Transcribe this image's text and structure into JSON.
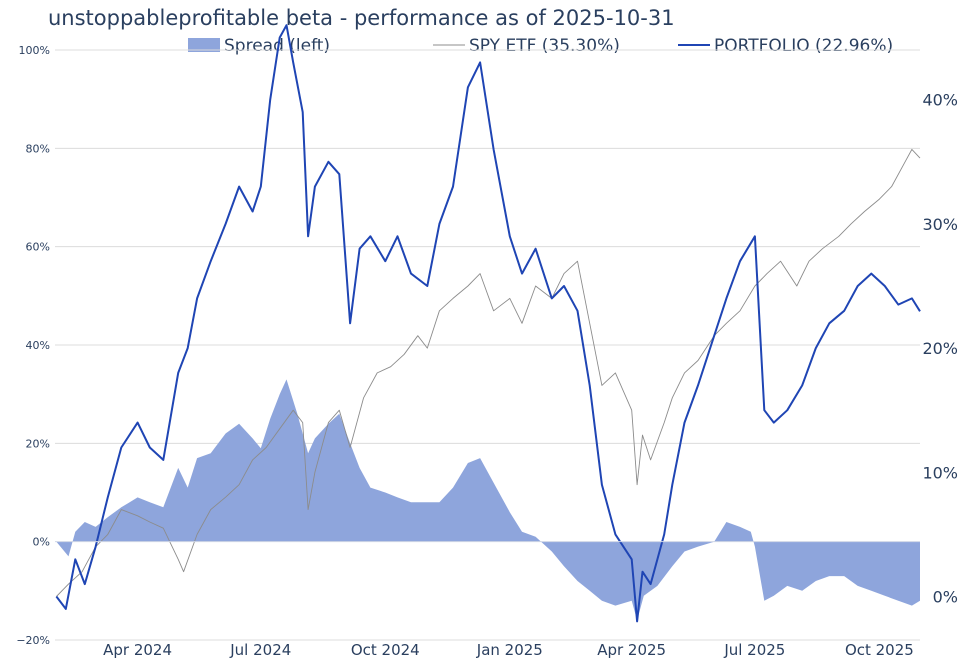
{
  "chart_data": {
    "type": "line",
    "title": "unstoppableprofitable beta - performance as of 2025-10-31",
    "legend_position": "top",
    "grid": true,
    "x_range": [
      "2024-01-31",
      "2025-10-31"
    ],
    "x_ticks": [
      {
        "date": "2024-04-01",
        "label": "Apr 2024"
      },
      {
        "date": "2024-07-01",
        "label": "Jul 2024"
      },
      {
        "date": "2024-10-01",
        "label": "Oct 2024"
      },
      {
        "date": "2025-01-01",
        "label": "Jan 2025"
      },
      {
        "date": "2025-04-01",
        "label": "Apr 2025"
      },
      {
        "date": "2025-07-01",
        "label": "Jul 2025"
      },
      {
        "date": "2025-10-01",
        "label": "Oct 2025"
      }
    ],
    "y_left": {
      "range": [
        -20,
        100
      ],
      "ticks": [
        -20,
        0,
        20,
        40,
        60,
        80,
        100
      ],
      "labels": [
        "−20%",
        "0%",
        "20%",
        "40%",
        "60%",
        "80%",
        "100%"
      ]
    },
    "y_right": {
      "range": [
        -3.5,
        44
      ],
      "ticks": [
        0,
        10,
        20,
        30,
        40
      ],
      "labels": [
        "0%",
        "10%",
        "20%",
        "30%",
        "40%"
      ]
    },
    "series": [
      {
        "name": "Spread (left)",
        "kind": "area",
        "axis": "left",
        "color": "#8ea5dc",
        "points": [
          [
            "2024-02-01",
            0
          ],
          [
            "2024-02-10",
            -3
          ],
          [
            "2024-02-15",
            2
          ],
          [
            "2024-02-22",
            4
          ],
          [
            "2024-03-01",
            3
          ],
          [
            "2024-03-10",
            5
          ],
          [
            "2024-03-20",
            7
          ],
          [
            "2024-04-01",
            9
          ],
          [
            "2024-04-10",
            8
          ],
          [
            "2024-04-20",
            7
          ],
          [
            "2024-05-01",
            15
          ],
          [
            "2024-05-08",
            11
          ],
          [
            "2024-05-15",
            17
          ],
          [
            "2024-05-25",
            18
          ],
          [
            "2024-06-05",
            22
          ],
          [
            "2024-06-15",
            24
          ],
          [
            "2024-06-25",
            21
          ],
          [
            "2024-07-01",
            19
          ],
          [
            "2024-07-08",
            25
          ],
          [
            "2024-07-15",
            30
          ],
          [
            "2024-07-20",
            33
          ],
          [
            "2024-07-28",
            26
          ],
          [
            "2024-08-05",
            18
          ],
          [
            "2024-08-10",
            21
          ],
          [
            "2024-08-20",
            24
          ],
          [
            "2024-08-28",
            26
          ],
          [
            "2024-09-05",
            20
          ],
          [
            "2024-09-12",
            15
          ],
          [
            "2024-09-20",
            11
          ],
          [
            "2024-10-01",
            10
          ],
          [
            "2024-10-10",
            9
          ],
          [
            "2024-10-20",
            8
          ],
          [
            "2024-11-01",
            8
          ],
          [
            "2024-11-10",
            8
          ],
          [
            "2024-11-20",
            11
          ],
          [
            "2024-12-01",
            16
          ],
          [
            "2024-12-10",
            17
          ],
          [
            "2024-12-20",
            12
          ],
          [
            "2025-01-01",
            6
          ],
          [
            "2025-01-10",
            2
          ],
          [
            "2025-01-20",
            1
          ],
          [
            "2025-02-01",
            -2
          ],
          [
            "2025-02-10",
            -5
          ],
          [
            "2025-02-20",
            -8
          ],
          [
            "2025-03-01",
            -10
          ],
          [
            "2025-03-10",
            -12
          ],
          [
            "2025-03-20",
            -13
          ],
          [
            "2025-04-01",
            -12
          ],
          [
            "2025-04-05",
            -16
          ],
          [
            "2025-04-10",
            -11
          ],
          [
            "2025-04-20",
            -9
          ],
          [
            "2025-05-01",
            -5
          ],
          [
            "2025-05-10",
            -2
          ],
          [
            "2025-05-20",
            -1
          ],
          [
            "2025-06-01",
            0
          ],
          [
            "2025-06-10",
            4
          ],
          [
            "2025-06-20",
            3
          ],
          [
            "2025-06-28",
            2
          ],
          [
            "2025-07-01",
            -1
          ],
          [
            "2025-07-08",
            -12
          ],
          [
            "2025-07-15",
            -11
          ],
          [
            "2025-07-25",
            -9
          ],
          [
            "2025-08-05",
            -10
          ],
          [
            "2025-08-15",
            -8
          ],
          [
            "2025-08-25",
            -7
          ],
          [
            "2025-09-05",
            -7
          ],
          [
            "2025-09-15",
            -9
          ],
          [
            "2025-09-25",
            -10
          ],
          [
            "2025-10-05",
            -11
          ],
          [
            "2025-10-15",
            -12
          ],
          [
            "2025-10-25",
            -13
          ],
          [
            "2025-10-31",
            -12
          ]
        ]
      },
      {
        "name": "SPY ETF (35.30%)",
        "kind": "line",
        "axis": "right",
        "color": "#8c8c8c",
        "points": [
          [
            "2024-02-01",
            0
          ],
          [
            "2024-02-10",
            1
          ],
          [
            "2024-02-20",
            2
          ],
          [
            "2024-03-01",
            4
          ],
          [
            "2024-03-10",
            5
          ],
          [
            "2024-03-20",
            7
          ],
          [
            "2024-04-01",
            6.5
          ],
          [
            "2024-04-10",
            6
          ],
          [
            "2024-04-20",
            5.5
          ],
          [
            "2024-05-01",
            3
          ],
          [
            "2024-05-05",
            2
          ],
          [
            "2024-05-15",
            5
          ],
          [
            "2024-05-25",
            7
          ],
          [
            "2024-06-05",
            8
          ],
          [
            "2024-06-15",
            9
          ],
          [
            "2024-06-25",
            11
          ],
          [
            "2024-07-05",
            12
          ],
          [
            "2024-07-15",
            13.5
          ],
          [
            "2024-07-25",
            15
          ],
          [
            "2024-08-01",
            14
          ],
          [
            "2024-08-05",
            7
          ],
          [
            "2024-08-10",
            10
          ],
          [
            "2024-08-20",
            14
          ],
          [
            "2024-08-28",
            15
          ],
          [
            "2024-09-05",
            12
          ],
          [
            "2024-09-15",
            16
          ],
          [
            "2024-09-25",
            18
          ],
          [
            "2024-10-05",
            18.5
          ],
          [
            "2024-10-15",
            19.5
          ],
          [
            "2024-10-25",
            21
          ],
          [
            "2024-11-01",
            20
          ],
          [
            "2024-11-10",
            23
          ],
          [
            "2024-11-20",
            24
          ],
          [
            "2024-12-01",
            25
          ],
          [
            "2024-12-10",
            26
          ],
          [
            "2024-12-20",
            23
          ],
          [
            "2025-01-01",
            24
          ],
          [
            "2025-01-10",
            22
          ],
          [
            "2025-01-20",
            25
          ],
          [
            "2025-02-01",
            24
          ],
          [
            "2025-02-10",
            26
          ],
          [
            "2025-02-20",
            27
          ],
          [
            "2025-03-01",
            22
          ],
          [
            "2025-03-10",
            17
          ],
          [
            "2025-03-20",
            18
          ],
          [
            "2025-04-01",
            15
          ],
          [
            "2025-04-05",
            9
          ],
          [
            "2025-04-09",
            13
          ],
          [
            "2025-04-15",
            11
          ],
          [
            "2025-04-25",
            14
          ],
          [
            "2025-05-01",
            16
          ],
          [
            "2025-05-10",
            18
          ],
          [
            "2025-05-20",
            19
          ],
          [
            "2025-06-01",
            21
          ],
          [
            "2025-06-10",
            22
          ],
          [
            "2025-06-20",
            23
          ],
          [
            "2025-07-01",
            25
          ],
          [
            "2025-07-10",
            26
          ],
          [
            "2025-07-20",
            27
          ],
          [
            "2025-08-01",
            25
          ],
          [
            "2025-08-10",
            27
          ],
          [
            "2025-08-20",
            28
          ],
          [
            "2025-09-01",
            29
          ],
          [
            "2025-09-10",
            30
          ],
          [
            "2025-09-20",
            31
          ],
          [
            "2025-10-01",
            32
          ],
          [
            "2025-10-10",
            33
          ],
          [
            "2025-10-20",
            35
          ],
          [
            "2025-10-25",
            36
          ],
          [
            "2025-10-31",
            35.3
          ]
        ]
      },
      {
        "name": "PORTFOLIO (22.96%)",
        "kind": "line",
        "axis": "right",
        "color": "#1f45b4",
        "points": [
          [
            "2024-02-01",
            0
          ],
          [
            "2024-02-08",
            -1
          ],
          [
            "2024-02-15",
            3
          ],
          [
            "2024-02-22",
            1
          ],
          [
            "2024-03-01",
            4
          ],
          [
            "2024-03-10",
            8
          ],
          [
            "2024-03-20",
            12
          ],
          [
            "2024-04-01",
            14
          ],
          [
            "2024-04-10",
            12
          ],
          [
            "2024-04-20",
            11
          ],
          [
            "2024-05-01",
            18
          ],
          [
            "2024-05-08",
            20
          ],
          [
            "2024-05-15",
            24
          ],
          [
            "2024-05-25",
            27
          ],
          [
            "2024-06-05",
            30
          ],
          [
            "2024-06-15",
            33
          ],
          [
            "2024-06-25",
            31
          ],
          [
            "2024-07-01",
            33
          ],
          [
            "2024-07-08",
            40
          ],
          [
            "2024-07-15",
            45
          ],
          [
            "2024-07-20",
            46
          ],
          [
            "2024-07-25",
            43
          ],
          [
            "2024-08-01",
            39
          ],
          [
            "2024-08-05",
            29
          ],
          [
            "2024-08-10",
            33
          ],
          [
            "2024-08-20",
            35
          ],
          [
            "2024-08-28",
            34
          ],
          [
            "2024-09-05",
            22
          ],
          [
            "2024-09-12",
            28
          ],
          [
            "2024-09-20",
            29
          ],
          [
            "2024-10-01",
            27
          ],
          [
            "2024-10-10",
            29
          ],
          [
            "2024-10-20",
            26
          ],
          [
            "2024-11-01",
            25
          ],
          [
            "2024-11-10",
            30
          ],
          [
            "2024-11-20",
            33
          ],
          [
            "2024-12-01",
            41
          ],
          [
            "2024-12-10",
            43
          ],
          [
            "2024-12-20",
            36
          ],
          [
            "2025-01-01",
            29
          ],
          [
            "2025-01-10",
            26
          ],
          [
            "2025-01-20",
            28
          ],
          [
            "2025-02-01",
            24
          ],
          [
            "2025-02-10",
            25
          ],
          [
            "2025-02-20",
            23
          ],
          [
            "2025-03-01",
            17
          ],
          [
            "2025-03-10",
            9
          ],
          [
            "2025-03-20",
            5
          ],
          [
            "2025-04-01",
            3
          ],
          [
            "2025-04-05",
            -2
          ],
          [
            "2025-04-09",
            2
          ],
          [
            "2025-04-15",
            1
          ],
          [
            "2025-04-25",
            5
          ],
          [
            "2025-05-01",
            9
          ],
          [
            "2025-05-10",
            14
          ],
          [
            "2025-05-20",
            17
          ],
          [
            "2025-06-01",
            21
          ],
          [
            "2025-06-10",
            24
          ],
          [
            "2025-06-20",
            27
          ],
          [
            "2025-07-01",
            29
          ],
          [
            "2025-07-08",
            15
          ],
          [
            "2025-07-15",
            14
          ],
          [
            "2025-07-25",
            15
          ],
          [
            "2025-08-05",
            17
          ],
          [
            "2025-08-15",
            20
          ],
          [
            "2025-08-25",
            22
          ],
          [
            "2025-09-05",
            23
          ],
          [
            "2025-09-15",
            25
          ],
          [
            "2025-09-25",
            26
          ],
          [
            "2025-10-05",
            25
          ],
          [
            "2025-10-15",
            23.5
          ],
          [
            "2025-10-25",
            24
          ],
          [
            "2025-10-31",
            22.96
          ]
        ]
      }
    ]
  }
}
